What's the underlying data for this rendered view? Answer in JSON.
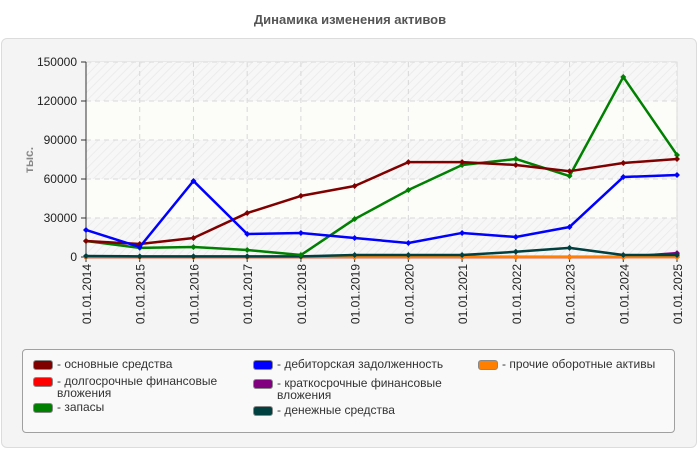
{
  "title": "Динамика изменения активов",
  "chart_data": {
    "type": "line",
    "title": "Динамика изменения активов",
    "xlabel": "",
    "ylabel": "тыс.",
    "ylim": [
      0,
      150000
    ],
    "yticks": [
      0,
      30000,
      60000,
      90000,
      120000,
      150000
    ],
    "ytick_labels": [
      "0",
      "30000",
      "60000",
      "90000",
      "120000",
      "150000"
    ],
    "grid": true,
    "legend_position": "bottom",
    "categories": [
      "01.01.2014",
      "01.01.2015",
      "01.01.2016",
      "01.01.2017",
      "01.01.2018",
      "01.01.2019",
      "01.01.2020",
      "01.01.2021",
      "01.01.2022",
      "01.01.2023",
      "01.01.2024",
      "01.01.2025"
    ],
    "series": [
      {
        "name": "основные средства",
        "color": "#800000",
        "values": [
          12300,
          10000,
          14600,
          33800,
          47000,
          54600,
          73000,
          73000,
          70800,
          66000,
          72300,
          75400
        ]
      },
      {
        "name": "долгосрочные финансовые вложения",
        "color": "#ff0000",
        "values": [
          0,
          0,
          0,
          0,
          0,
          0,
          0,
          0,
          0,
          0,
          0,
          0
        ]
      },
      {
        "name": "запасы",
        "color": "#008000",
        "values": [
          12300,
          7000,
          7700,
          5400,
          1500,
          29200,
          51500,
          70800,
          75400,
          62300,
          138500,
          78500
        ]
      },
      {
        "name": "дебиторская задолженность",
        "color": "#0000ff",
        "values": [
          20800,
          7700,
          58500,
          17700,
          18500,
          14600,
          10800,
          18500,
          15400,
          23100,
          61500,
          63100
        ]
      },
      {
        "name": "краткосрочные финансовые вложения",
        "color": "#800080",
        "values": [
          0,
          0,
          0,
          0,
          0,
          0,
          0,
          0,
          0,
          0,
          0,
          3000
        ]
      },
      {
        "name": "денежные средства",
        "color": "#004040",
        "values": [
          800,
          500,
          500,
          500,
          500,
          1500,
          1500,
          1500,
          4000,
          7000,
          1500,
          1500
        ]
      },
      {
        "name": "прочие оборотные активы",
        "color": "#ff8000",
        "values": [
          0,
          0,
          0,
          0,
          0,
          0,
          0,
          0,
          0,
          0,
          0,
          0
        ]
      }
    ]
  },
  "legend": [
    {
      "label": "- основные средства",
      "color": "#800000"
    },
    {
      "label": "- долгосрочные финансовые\nвложения",
      "color": "#ff0000"
    },
    {
      "label": "- запасы",
      "color": "#008000"
    },
    {
      "label": "- дебиторская задолженность",
      "color": "#0000ff"
    },
    {
      "label": "- краткосрочные финансовые\nвложения",
      "color": "#800080"
    },
    {
      "label": "- денежные средства",
      "color": "#004040"
    },
    {
      "label": "- прочие оборотные активы",
      "color": "#ff8000"
    }
  ]
}
